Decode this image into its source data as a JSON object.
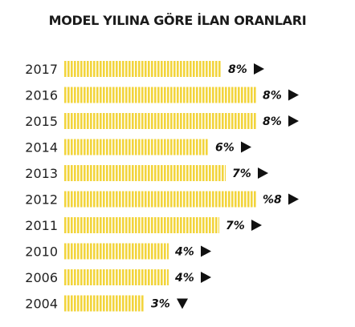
{
  "chart_data": {
    "type": "bar",
    "orientation": "horizontal",
    "title": "MODEL YILINA GÖRE İLAN ORANLARI",
    "categories": [
      "2017",
      "2016",
      "2015",
      "2014",
      "2013",
      "2012",
      "2011",
      "2010",
      "2006",
      "2004"
    ],
    "values": [
      8,
      8,
      8,
      6,
      7,
      8,
      7,
      4,
      4,
      3
    ],
    "value_labels": [
      "8%",
      "8%",
      "8%",
      "6%",
      "7%",
      "%8",
      "7%",
      "4%",
      "4%",
      "3%"
    ],
    "trend_icons": [
      "triangle-right-icon",
      "triangle-right-icon",
      "triangle-right-icon",
      "triangle-right-icon",
      "triangle-right-icon",
      "triangle-right-icon",
      "triangle-right-icon",
      "triangle-right-icon",
      "triangle-right-icon",
      "triangle-down-icon"
    ],
    "bar_color": "#f2d43c",
    "stripe_gap_color": "#ffffff",
    "grid": false,
    "legend": "none"
  }
}
